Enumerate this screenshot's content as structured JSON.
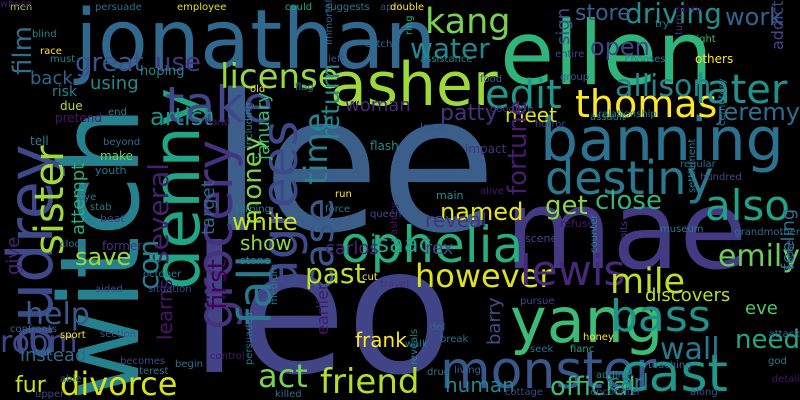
{
  "words": [
    {
      "text": "lee",
      "color": "#3b5f8a"
    },
    {
      "text": "leo",
      "color": "#414487"
    },
    {
      "text": "mae",
      "color": "#443a83"
    },
    {
      "text": "jonathan",
      "color": "#31688e"
    },
    {
      "text": "ellen",
      "color": "#2fb47c"
    },
    {
      "text": "witch",
      "color": "#26818e"
    },
    {
      "text": "asher",
      "color": "#9dd93b"
    },
    {
      "text": "banning",
      "color": "#2c728e"
    },
    {
      "text": "ophelia",
      "color": "#29af7f"
    },
    {
      "text": "yang",
      "color": "#3bbb75"
    },
    {
      "text": "denny",
      "color": "#21a685"
    },
    {
      "text": "destiny",
      "color": "#2a788e"
    },
    {
      "text": "monster",
      "color": "#38588c"
    },
    {
      "text": "bass",
      "color": "#21918c"
    },
    {
      "text": "audrey",
      "color": "#3e4989"
    },
    {
      "text": "cast",
      "color": "#1f978b"
    },
    {
      "text": "thomas",
      "color": "#fde725"
    },
    {
      "text": "take",
      "color": "#3f4788"
    },
    {
      "text": "edit",
      "color": "#1f988b"
    },
    {
      "text": "later",
      "color": "#20928c"
    },
    {
      "text": "sister",
      "color": "#a0da39"
    },
    {
      "text": "grocery",
      "color": "#46327e"
    },
    {
      "text": "kang",
      "color": "#7ad151"
    },
    {
      "text": "license",
      "color": "#95d840"
    },
    {
      "text": "friend",
      "color": "#b5de2b"
    },
    {
      "text": "divorce",
      "color": "#d8e219"
    },
    {
      "text": "also",
      "color": "#20a386"
    },
    {
      "text": "however",
      "color": "#dde318"
    },
    {
      "text": "lewis",
      "color": "#482878"
    },
    {
      "text": "mile",
      "color": "#c2df23"
    },
    {
      "text": "emily",
      "color": "#6ccd5a"
    },
    {
      "text": "wall",
      "color": "#2a788e"
    },
    {
      "text": "agrees",
      "color": "#3e4989"
    },
    {
      "text": "help",
      "color": "#38598c"
    },
    {
      "text": "room",
      "color": "#3e4989"
    },
    {
      "text": "act",
      "color": "#77d153"
    },
    {
      "text": "water",
      "color": "#23898e"
    },
    {
      "text": "great",
      "color": "#3b528b"
    },
    {
      "text": "use",
      "color": "#46337f"
    },
    {
      "text": "driving",
      "color": "#218f8d"
    },
    {
      "text": "work",
      "color": "#33638d"
    },
    {
      "text": "open",
      "color": "#3f4788"
    },
    {
      "text": "store",
      "color": "#34618d"
    },
    {
      "text": "allison",
      "color": "#26828e"
    },
    {
      "text": "film",
      "color": "#2d708e"
    },
    {
      "text": "money",
      "color": "#7ad151"
    },
    {
      "text": "time",
      "color": "#26828e"
    },
    {
      "text": "case",
      "color": "#38588c"
    },
    {
      "text": "fall",
      "color": "#2a778e"
    },
    {
      "text": "past",
      "color": "#bddf26"
    },
    {
      "text": "several",
      "color": "#481f70"
    },
    {
      "text": "con",
      "color": "#26828e"
    },
    {
      "text": "first",
      "color": "#440154"
    },
    {
      "text": "save",
      "color": "#9bd93c"
    },
    {
      "text": "show",
      "color": "#8ed645"
    },
    {
      "text": "white",
      "color": "#c8e020"
    },
    {
      "text": "isaac",
      "color": "#1fa088"
    },
    {
      "text": "named",
      "color": "#e5e419"
    },
    {
      "text": "get",
      "color": "#8bd646"
    },
    {
      "text": "close",
      "color": "#31b57b"
    },
    {
      "text": "reveal",
      "color": "#46327e"
    },
    {
      "text": "need",
      "color": "#22a884"
    },
    {
      "text": "official",
      "color": "#3bbb75"
    },
    {
      "text": "carl",
      "color": "#287d8e"
    },
    {
      "text": "human",
      "color": "#25848e"
    },
    {
      "text": "barry",
      "color": "#3b528b"
    },
    {
      "text": "frank",
      "color": "#fde725"
    },
    {
      "text": "fur",
      "color": "#d0e11c"
    },
    {
      "text": "instead",
      "color": "#31688e"
    },
    {
      "text": "jeremy",
      "color": "#2e6e8e"
    },
    {
      "text": "patty",
      "color": "#46337f"
    },
    {
      "text": "meet",
      "color": "#dde318"
    },
    {
      "text": "artist",
      "color": "#21918c"
    },
    {
      "text": "fortune",
      "color": "#481c6e"
    },
    {
      "text": "return",
      "color": "#23898e"
    },
    {
      "text": "carlos",
      "color": "#482475"
    },
    {
      "text": "rex",
      "color": "#3e4989"
    },
    {
      "text": "discovers",
      "color": "#b5de2b"
    },
    {
      "text": "feeling",
      "color": "#2c728e"
    },
    {
      "text": "eve",
      "color": "#52c569"
    },
    {
      "text": "back",
      "color": "#32648e"
    },
    {
      "text": "using",
      "color": "#238a8d"
    },
    {
      "text": "learns",
      "color": "#481668"
    },
    {
      "text": "give",
      "color": "#482475"
    },
    {
      "text": "woman",
      "color": "#482878"
    },
    {
      "text": "january",
      "color": "#35b779"
    },
    {
      "text": "attempt",
      "color": "#29af7f"
    },
    {
      "text": "sign",
      "color": "#3d4d8a"
    },
    {
      "text": "addict",
      "color": "#3f4788"
    },
    {
      "text": "target",
      "color": "#31688e"
    },
    {
      "text": "earlier",
      "color": "#48186a"
    },
    {
      "text": "hoping",
      "color": "#25848e"
    },
    {
      "text": "risk",
      "color": "#25848e"
    },
    {
      "text": "due",
      "color": "#b8de29"
    },
    {
      "text": "pretend",
      "color": "#481769"
    },
    {
      "text": "tell",
      "color": "#27808e"
    },
    {
      "text": "make",
      "color": "#6ece58"
    },
    {
      "text": "youth",
      "color": "#2a778e"
    },
    {
      "text": "beat",
      "color": "#453882"
    },
    {
      "text": "former",
      "color": "#46337f"
    },
    {
      "text": "stone",
      "color": "#25848e"
    },
    {
      "text": "flash",
      "color": "#238a8d"
    },
    {
      "text": "impact",
      "color": "#46327e"
    },
    {
      "text": "alive",
      "color": "#481769"
    },
    {
      "text": "main",
      "color": "#20928c"
    },
    {
      "text": "scene",
      "color": "#3f4788"
    },
    {
      "text": "refuse",
      "color": "#48186a"
    },
    {
      "text": "leave",
      "color": "#3a548c"
    },
    {
      "text": "horror",
      "color": "#433e85"
    },
    {
      "text": "assault",
      "color": "#26828e"
    },
    {
      "text": "relationship",
      "color": "#27808e"
    },
    {
      "text": "goodbye",
      "color": "#46327e"
    },
    {
      "text": "food",
      "color": "#355f8d"
    },
    {
      "text": "group",
      "color": "#355f8d"
    },
    {
      "text": "chooses",
      "color": "#2a788e"
    },
    {
      "text": "entire",
      "color": "#3f4788"
    },
    {
      "text": "party",
      "color": "#440154"
    },
    {
      "text": "try",
      "color": "#287c8e"
    },
    {
      "text": "turn",
      "color": "#46327e"
    },
    {
      "text": "night",
      "color": "#35b779"
    },
    {
      "text": "others",
      "color": "#fde725"
    },
    {
      "text": "men",
      "color": "#a2da37"
    },
    {
      "text": "blind",
      "color": "#26828e"
    },
    {
      "text": "race",
      "color": "#fde725"
    },
    {
      "text": "must",
      "color": "#25848e"
    },
    {
      "text": "persuade",
      "color": "#2e6e8e"
    },
    {
      "text": "employee",
      "color": "#dde318"
    },
    {
      "text": "could",
      "color": "#22a884"
    },
    {
      "text": "suggests",
      "color": "#2a788e"
    },
    {
      "text": "april",
      "color": "#3e4989"
    },
    {
      "text": "double",
      "color": "#fde725"
    },
    {
      "text": "immortal",
      "color": "#31688e"
    },
    {
      "text": "left",
      "color": "#3e4a89"
    },
    {
      "text": "catch",
      "color": "#2e6e8e"
    },
    {
      "text": "assistance",
      "color": "#25848e"
    },
    {
      "text": "ring",
      "color": "#22a884"
    },
    {
      "text": "flag",
      "color": "#2c728e"
    },
    {
      "text": "old",
      "color": "#fde725"
    },
    {
      "text": "hand",
      "color": "#481769"
    },
    {
      "text": "end",
      "color": "#2a788e"
    },
    {
      "text": "beyond",
      "color": "#2e6e8e"
    },
    {
      "text": "including",
      "color": "#25848e"
    },
    {
      "text": "run",
      "color": "#fde725"
    },
    {
      "text": "force",
      "color": "#2a788e"
    },
    {
      "text": "queen",
      "color": "#3e4989"
    },
    {
      "text": "ashley",
      "color": "#481769"
    },
    {
      "text": "cut",
      "color": "#fde725"
    },
    {
      "text": "travel",
      "color": "#46327e"
    },
    {
      "text": "del",
      "color": "#31688e"
    },
    {
      "text": "break",
      "color": "#2e6e8e"
    },
    {
      "text": "walk",
      "color": "#2a788e"
    },
    {
      "text": "reveals",
      "color": "#25848e"
    },
    {
      "text": "drug",
      "color": "#2a788e"
    },
    {
      "text": "living",
      "color": "#33638d"
    },
    {
      "text": "cottage",
      "color": "#3e4989"
    },
    {
      "text": "seek",
      "color": "#2e6e8e"
    },
    {
      "text": "fianc",
      "color": "#22a884"
    },
    {
      "text": "honey",
      "color": "#fde725"
    },
    {
      "text": "adding",
      "color": "#25848e"
    },
    {
      "text": "teaching",
      "color": "#2e6e8e"
    },
    {
      "text": "encounter",
      "color": "#3e4989"
    },
    {
      "text": "along",
      "color": "#3b528b"
    },
    {
      "text": "god",
      "color": "#2a788e"
    },
    {
      "text": "detail",
      "color": "#481769"
    },
    {
      "text": "attack",
      "color": "#2a788e"
    },
    {
      "text": "house",
      "color": "#33638d"
    },
    {
      "text": "grandmother",
      "color": "#2e6e8e"
    },
    {
      "text": "admits",
      "color": "#46327e"
    },
    {
      "text": "museum",
      "color": "#2a788e"
    },
    {
      "text": "hundred",
      "color": "#3e4989"
    },
    {
      "text": "regular",
      "color": "#2e6e8e"
    },
    {
      "text": "cemetery",
      "color": "#2a788e"
    },
    {
      "text": "counter",
      "color": "#25848e"
    },
    {
      "text": "pursue",
      "color": "#3e4989"
    },
    {
      "text": "settlement",
      "color": "#2a788e"
    },
    {
      "text": "whose",
      "color": "#481769"
    },
    {
      "text": "sport",
      "color": "#fde725"
    },
    {
      "text": "salt",
      "color": "#2e6e8e"
    },
    {
      "text": "aided",
      "color": "#3e4989"
    },
    {
      "text": "october",
      "color": "#2a788e"
    },
    {
      "text": "section",
      "color": "#3b528b"
    },
    {
      "text": "able",
      "color": "#2e6e8e"
    },
    {
      "text": "confronts",
      "color": "#33638d"
    },
    {
      "text": "clock",
      "color": "#2e6e8e"
    },
    {
      "text": "medium",
      "color": "#2a788e"
    },
    {
      "text": "becomes",
      "color": "#3e4989"
    },
    {
      "text": "interest",
      "color": "#2a788e"
    },
    {
      "text": "control",
      "color": "#481769"
    },
    {
      "text": "killed",
      "color": "#2e6e8e"
    },
    {
      "text": "persuaded",
      "color": "#2a788e"
    },
    {
      "text": "upper",
      "color": "#3e4989"
    },
    {
      "text": "eye",
      "color": "#2e6e8e"
    },
    {
      "text": "stab",
      "color": "#2a788e"
    },
    {
      "text": "begin",
      "color": "#2e6e8e"
    },
    {
      "text": "situation",
      "color": "#3e4989"
    },
    {
      "text": "turning",
      "color": "#2a788e"
    }
  ]
}
